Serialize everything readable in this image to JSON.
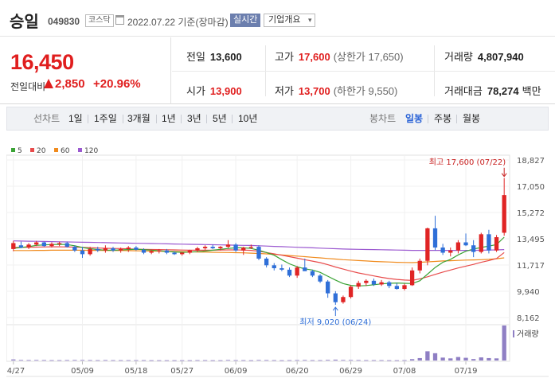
{
  "header": {
    "name": "승일",
    "code": "049830",
    "market": "코스닥",
    "date": "2022.07.22 기준(장마감)",
    "live": "실시간",
    "info_button": "기업개요",
    "info_arrow": "▾"
  },
  "price": {
    "current": "16,450",
    "change_label": "전일대비",
    "change_value": "2,850",
    "change_pct": "+20.96%"
  },
  "stats": {
    "prev_label": "전일",
    "prev": "13,600",
    "high_label": "고가",
    "high": "17,600",
    "upper_limit": "(상한가 17,650)",
    "volume_label": "거래량",
    "volume": "4,807,940",
    "open_label": "시가",
    "open": "13,900",
    "low_label": "저가",
    "low": "13,700",
    "lower_limit": "(하한가 9,550)",
    "amount_label": "거래대금",
    "amount": "78,274",
    "amount_unit": "백만"
  },
  "tabs": {
    "line_label": "선차트",
    "line_items": [
      "1일",
      "1주일",
      "3개월",
      "1년",
      "3년",
      "5년",
      "10년"
    ],
    "candle_label": "봉차트",
    "candle_items": [
      "일봉",
      "주봉",
      "월봉"
    ],
    "candle_selected": 0
  },
  "chart_data": {
    "type": "candlestick",
    "legend": [
      {
        "name": "5",
        "color": "#3aa335"
      },
      {
        "name": "20",
        "color": "#e84b4b"
      },
      {
        "name": "60",
        "color": "#f08a1c"
      },
      {
        "name": "120",
        "color": "#9b59d0"
      }
    ],
    "y_ticks": [
      "18,827",
      "17,050",
      "15,272",
      "13,495",
      "11,717",
      "9,940",
      "8,162"
    ],
    "ylim": [
      8162,
      18827
    ],
    "x_labels": [
      {
        "idx": 0,
        "label": "04/27"
      },
      {
        "idx": 9,
        "label": "05/09"
      },
      {
        "idx": 16,
        "label": "05/18"
      },
      {
        "idx": 22,
        "label": "05/27"
      },
      {
        "idx": 29,
        "label": "06/09"
      },
      {
        "idx": 37,
        "label": "06/20"
      },
      {
        "idx": 44,
        "label": "06/29"
      },
      {
        "idx": 51,
        "label": "07/08"
      },
      {
        "idx": 59,
        "label": "07/19"
      }
    ],
    "high_annotation": {
      "text": "최고 17,600 (07/22)"
    },
    "low_annotation": {
      "text": "최저 9,020 (06/24)"
    },
    "volume_label": "거래량",
    "up_color": "#e02424",
    "down_color": "#2f6fd8",
    "ohlc": [
      [
        12800,
        13350,
        12650,
        13200
      ],
      [
        13050,
        13300,
        12850,
        12900
      ],
      [
        12900,
        13200,
        12800,
        13100
      ],
      [
        13100,
        13350,
        13000,
        13250
      ],
      [
        13250,
        13300,
        12950,
        13000
      ],
      [
        13000,
        13250,
        12900,
        13150
      ],
      [
        13150,
        13300,
        13000,
        13200
      ],
      [
        13200,
        13300,
        12900,
        12950
      ],
      [
        12950,
        13050,
        12600,
        12700
      ],
      [
        12700,
        12950,
        12200,
        12450
      ],
      [
        12450,
        12950,
        12350,
        12800
      ],
      [
        12800,
        12950,
        12600,
        12700
      ],
      [
        12700,
        13050,
        12550,
        12850
      ],
      [
        12850,
        12950,
        12600,
        12700
      ],
      [
        12700,
        12900,
        12550,
        12800
      ],
      [
        12800,
        13000,
        12600,
        12900
      ],
      [
        12900,
        13000,
        12700,
        12750
      ],
      [
        12750,
        12850,
        12450,
        12550
      ],
      [
        12550,
        12750,
        12450,
        12650
      ],
      [
        12650,
        12800,
        12500,
        12700
      ],
      [
        12700,
        12800,
        12450,
        12550
      ],
      [
        12550,
        12650,
        12400,
        12450
      ],
      [
        12450,
        12600,
        12350,
        12550
      ],
      [
        12550,
        12750,
        12450,
        12700
      ],
      [
        12700,
        12950,
        12600,
        12850
      ],
      [
        12850,
        13050,
        12750,
        12950
      ],
      [
        12950,
        13100,
        12800,
        12850
      ],
      [
        12850,
        13000,
        12700,
        12950
      ],
      [
        12950,
        13400,
        12850,
        13100
      ],
      [
        13100,
        13200,
        12600,
        12700
      ],
      [
        12700,
        12950,
        12400,
        12900
      ],
      [
        12900,
        13100,
        12800,
        12950
      ],
      [
        12950,
        13050,
        12050,
        12150
      ],
      [
        12150,
        12250,
        11550,
        11700
      ],
      [
        11700,
        11850,
        11350,
        11500
      ],
      [
        11500,
        11750,
        11300,
        11400
      ],
      [
        11400,
        11550,
        10900,
        11000
      ],
      [
        11000,
        11650,
        10850,
        11550
      ],
      [
        11550,
        12150,
        11350,
        11300
      ],
      [
        11300,
        11400,
        10900,
        11000
      ],
      [
        11000,
        11100,
        10500,
        10600
      ],
      [
        10600,
        10700,
        9500,
        9800
      ],
      [
        9800,
        9950,
        9020,
        9200
      ],
      [
        9200,
        9650,
        9100,
        9550
      ],
      [
        9550,
        10350,
        9450,
        10250
      ],
      [
        10250,
        10650,
        10100,
        10500
      ],
      [
        10500,
        10750,
        10300,
        10650
      ],
      [
        10650,
        10800,
        10300,
        10400
      ],
      [
        10400,
        10700,
        10300,
        10550
      ],
      [
        10550,
        10650,
        10150,
        10300
      ],
      [
        10300,
        10500,
        10050,
        10100
      ],
      [
        10100,
        10450,
        10000,
        10350
      ],
      [
        10350,
        11550,
        10300,
        11350
      ],
      [
        11350,
        12150,
        11150,
        12000
      ],
      [
        12000,
        14250,
        11700,
        14200
      ],
      [
        14200,
        15050,
        12700,
        12900
      ],
      [
        12900,
        13150,
        12400,
        12550
      ],
      [
        12550,
        12900,
        12300,
        12700
      ],
      [
        12700,
        13400,
        12500,
        13250
      ],
      [
        13250,
        13850,
        13000,
        13050
      ],
      [
        13050,
        13400,
        12250,
        12600
      ],
      [
        12600,
        13900,
        12500,
        13800
      ],
      [
        13800,
        14100,
        12500,
        12700
      ],
      [
        12700,
        13750,
        12600,
        13600
      ],
      [
        13900,
        17600,
        13700,
        16450
      ]
    ],
    "ma5": [
      12850,
      12900,
      12960,
      13050,
      13080,
      13100,
      13120,
      13100,
      13020,
      12900,
      12820,
      12760,
      12720,
      12720,
      12740,
      12760,
      12790,
      12760,
      12720,
      12680,
      12640,
      12600,
      12580,
      12590,
      12620,
      12660,
      12720,
      12780,
      12840,
      12880,
      12880,
      12840,
      12720,
      12560,
      12380,
      12080,
      11800,
      11600,
      11460,
      11380,
      11220,
      10960,
      10700,
      10460,
      10340,
      10300,
      10330,
      10380,
      10440,
      10480,
      10500,
      10480,
      10460,
      10650,
      11100,
      11550,
      11900,
      12100,
      12400,
      12650,
      12800,
      12900,
      13000,
      13100,
      13600
    ],
    "ma20": [
      12900,
      12910,
      12920,
      12930,
      12940,
      12950,
      12950,
      12940,
      12930,
      12910,
      12890,
      12870,
      12850,
      12840,
      12830,
      12810,
      12790,
      12780,
      12770,
      12760,
      12750,
      12740,
      12730,
      12720,
      12720,
      12720,
      12720,
      12730,
      12740,
      12740,
      12730,
      12710,
      12650,
      12560,
      12470,
      12380,
      12280,
      12180,
      12080,
      11980,
      11880,
      11740,
      11580,
      11440,
      11300,
      11180,
      11080,
      10980,
      10880,
      10800,
      10740,
      10700,
      10680,
      10780,
      10920,
      11080,
      11240,
      11380,
      11520,
      11640,
      11760,
      11900,
      12020,
      12160,
      12560
    ],
    "ma60": [
      12700,
      12700,
      12700,
      12710,
      12710,
      12720,
      12720,
      12720,
      12720,
      12720,
      12710,
      12710,
      12700,
      12700,
      12700,
      12690,
      12680,
      12670,
      12660,
      12650,
      12640,
      12630,
      12620,
      12610,
      12600,
      12590,
      12580,
      12570,
      12560,
      12550,
      12540,
      12520,
      12500,
      12470,
      12440,
      12400,
      12360,
      12320,
      12280,
      12240,
      12200,
      12160,
      12120,
      12080,
      12050,
      12020,
      11990,
      11960,
      11940,
      11920,
      11900,
      11890,
      11880,
      11900,
      11930,
      11960,
      11990,
      12010,
      12030,
      12050,
      12060,
      12080,
      12100,
      12140,
      12200
    ],
    "ma120": [
      13350,
      13340,
      13330,
      13320,
      13310,
      13300,
      13290,
      13280,
      13270,
      13260,
      13250,
      13240,
      13230,
      13220,
      13210,
      13200,
      13190,
      13180,
      13170,
      13160,
      13150,
      13140,
      13130,
      13120,
      13110,
      13100,
      13090,
      13080,
      13070,
      13060,
      13050,
      13040,
      13020,
      13000,
      12980,
      12960,
      12940,
      12920,
      12900,
      12880,
      12860,
      12840,
      12820,
      12800,
      12790,
      12780,
      12770,
      12760,
      12750,
      12740,
      12730,
      12720,
      12710,
      12710,
      12710,
      12710,
      12710,
      12710,
      12710,
      12710,
      12710,
      12720,
      12730,
      12740,
      12760
    ],
    "volume": [
      1.1,
      0.6,
      0.5,
      0.6,
      0.5,
      0.4,
      0.4,
      0.5,
      0.6,
      0.6,
      0.5,
      0.4,
      0.5,
      0.4,
      0.4,
      0.4,
      0.4,
      0.4,
      0.3,
      0.3,
      0.3,
      0.3,
      0.3,
      0.3,
      0.4,
      0.4,
      0.3,
      0.3,
      0.6,
      0.4,
      0.4,
      0.3,
      0.6,
      0.5,
      0.4,
      0.3,
      0.4,
      0.5,
      0.6,
      0.4,
      0.4,
      0.7,
      0.9,
      0.6,
      0.6,
      0.5,
      0.4,
      0.4,
      0.4,
      0.3,
      0.3,
      0.4,
      1.4,
      2.5,
      9.5,
      7.5,
      3.0,
      2.2,
      3.6,
      2.8,
      1.5,
      3.2,
      2.5,
      2.2,
      36.0
    ]
  }
}
